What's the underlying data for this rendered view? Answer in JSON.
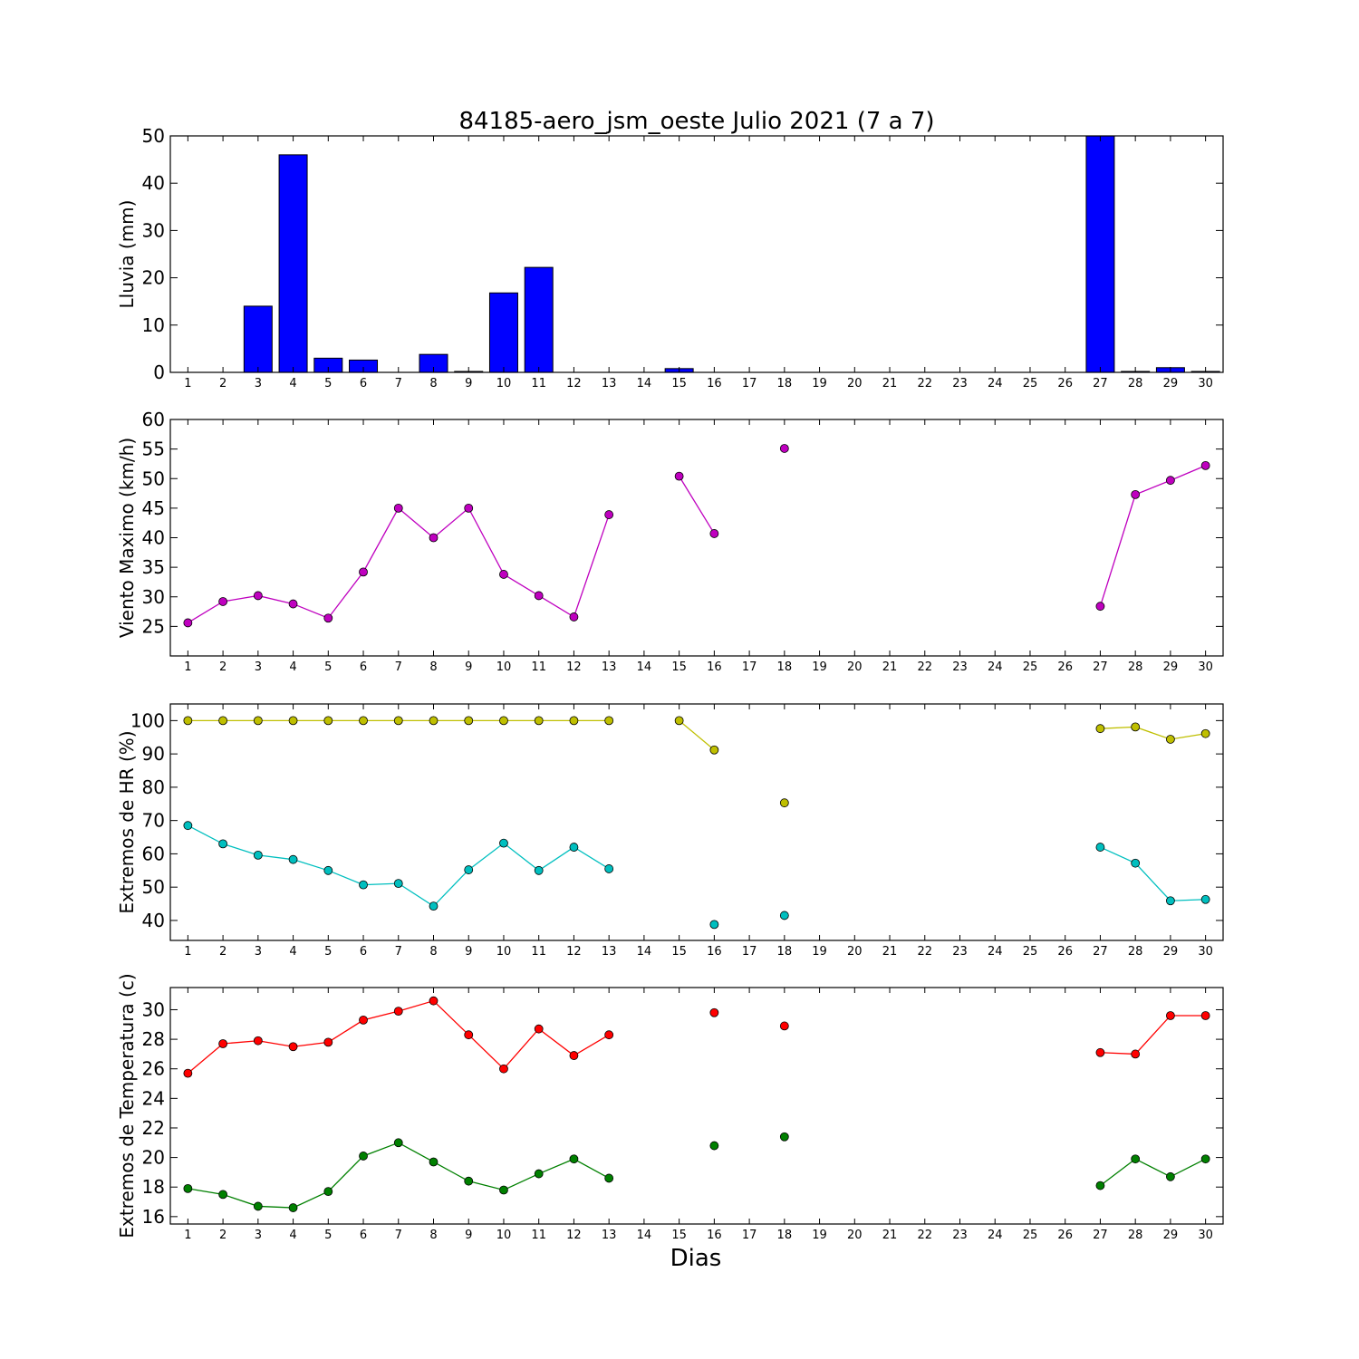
{
  "figure": {
    "title": "84185-aero_jsm_oeste Julio 2021  (7 a 7)",
    "xlabel": "Dias"
  },
  "chart_data": [
    {
      "type": "bar",
      "ylabel": "Lluvia (mm)",
      "x": [
        1,
        2,
        3,
        4,
        5,
        6,
        7,
        8,
        9,
        10,
        11,
        12,
        13,
        14,
        15,
        16,
        17,
        18,
        19,
        20,
        21,
        22,
        23,
        24,
        25,
        26,
        27,
        28,
        29,
        30
      ],
      "xlim": [
        0.5,
        30.5
      ],
      "ylim": [
        0,
        50
      ],
      "yticks": [
        0,
        10,
        20,
        30,
        40,
        50
      ],
      "color": "#0000ff",
      "series": [
        {
          "values": [
            0,
            0,
            14,
            46,
            3,
            2.6,
            0,
            3.8,
            0.2,
            16.8,
            22.2,
            0,
            0,
            0,
            0.8,
            0,
            0,
            0,
            0,
            0,
            0,
            0,
            0,
            0,
            0,
            0,
            50,
            0.2,
            1,
            0.2
          ]
        }
      ]
    },
    {
      "type": "line",
      "ylabel": "Viento Maximo (km/h)",
      "x": [
        1,
        2,
        3,
        4,
        5,
        6,
        7,
        8,
        9,
        10,
        11,
        12,
        13,
        14,
        15,
        16,
        17,
        18,
        19,
        20,
        21,
        22,
        23,
        24,
        25,
        26,
        27,
        28,
        29,
        30
      ],
      "xlim": [
        0.5,
        30.5
      ],
      "ylim": [
        20,
        60
      ],
      "yticks": [
        25,
        30,
        35,
        40,
        45,
        50,
        55,
        60
      ],
      "series": [
        {
          "color": "#bf00bf",
          "values": [
            25.6,
            29.2,
            30.2,
            28.8,
            26.4,
            34.2,
            45,
            40,
            45,
            33.8,
            30.2,
            26.6,
            43.9,
            null,
            50.4,
            40.7,
            null,
            55.1,
            null,
            null,
            null,
            null,
            null,
            null,
            null,
            null,
            28.4,
            47.3,
            49.7,
            52.2
          ]
        }
      ]
    },
    {
      "type": "line",
      "ylabel": "Extremos de HR (%)",
      "x": [
        1,
        2,
        3,
        4,
        5,
        6,
        7,
        8,
        9,
        10,
        11,
        12,
        13,
        14,
        15,
        16,
        17,
        18,
        19,
        20,
        21,
        22,
        23,
        24,
        25,
        26,
        27,
        28,
        29,
        30
      ],
      "xlim": [
        0.5,
        30.5
      ],
      "ylim": [
        34,
        105
      ],
      "yticks": [
        40,
        50,
        60,
        70,
        80,
        90,
        100
      ],
      "series": [
        {
          "color": "#bfbf00",
          "values": [
            100,
            100,
            100,
            100,
            100,
            100,
            100,
            100,
            100,
            100,
            100,
            100,
            100,
            null,
            100,
            91.2,
            null,
            75.3,
            null,
            null,
            null,
            null,
            null,
            null,
            null,
            null,
            97.6,
            98.1,
            94.4,
            96.1
          ]
        },
        {
          "color": "#00bfbf",
          "values": [
            68.5,
            63,
            59.6,
            58.3,
            55,
            50.7,
            51.1,
            44.3,
            55.2,
            63.2,
            55,
            62,
            55.5,
            null,
            null,
            38.8,
            null,
            41.5,
            null,
            null,
            null,
            null,
            null,
            null,
            null,
            null,
            62,
            57.2,
            45.9,
            46.3
          ]
        }
      ]
    },
    {
      "type": "line",
      "ylabel": "Extremos de Temperatura (c)",
      "x": [
        1,
        2,
        3,
        4,
        5,
        6,
        7,
        8,
        9,
        10,
        11,
        12,
        13,
        14,
        15,
        16,
        17,
        18,
        19,
        20,
        21,
        22,
        23,
        24,
        25,
        26,
        27,
        28,
        29,
        30
      ],
      "xlim": [
        0.5,
        30.5
      ],
      "ylim": [
        15.5,
        31.5
      ],
      "yticks": [
        16,
        18,
        20,
        22,
        24,
        26,
        28,
        30
      ],
      "series": [
        {
          "color": "#ff0000",
          "values": [
            25.7,
            27.7,
            27.9,
            27.5,
            27.8,
            29.3,
            29.9,
            30.6,
            28.3,
            26,
            28.7,
            26.9,
            28.3,
            null,
            null,
            29.8,
            null,
            28.9,
            null,
            null,
            null,
            null,
            null,
            null,
            null,
            null,
            27.1,
            27,
            29.6,
            29.6
          ]
        },
        {
          "color": "#008000",
          "values": [
            17.9,
            17.5,
            16.7,
            16.6,
            17.7,
            20.1,
            21,
            19.7,
            18.4,
            17.8,
            18.9,
            19.9,
            18.6,
            null,
            null,
            20.8,
            null,
            21.4,
            null,
            null,
            null,
            null,
            null,
            null,
            null,
            null,
            18.1,
            19.9,
            18.7,
            19.9
          ]
        }
      ]
    }
  ]
}
